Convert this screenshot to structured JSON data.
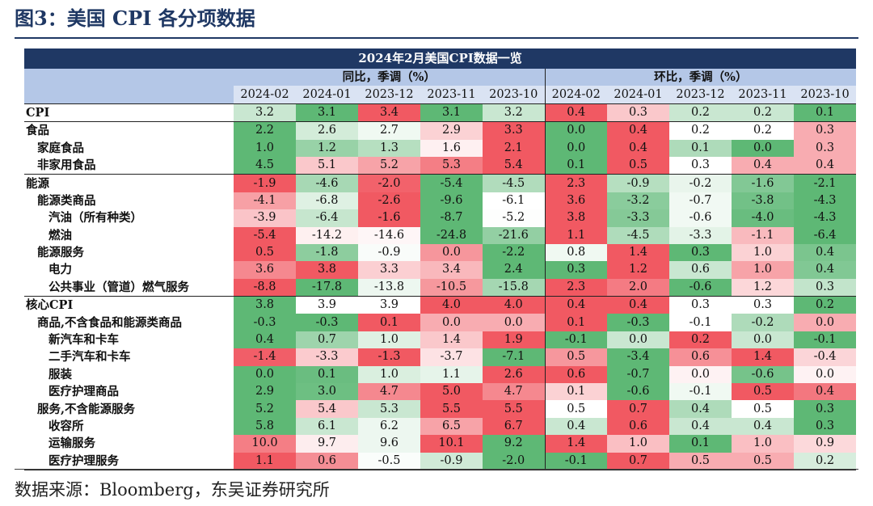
{
  "figure_title": "图3：美国 CPI 各分项数据",
  "source": "数据来源：Bloomberg，东吴证券研究所",
  "colors": {
    "pos_max": "#f0505a",
    "neg_max": "#55b46e",
    "header_dark": "#1f3864",
    "header_mid": "#b4c7e7",
    "header_light": "#dae3f3"
  },
  "chart_data": {
    "type": "table",
    "title": "2024年2月美国CPI数据一览",
    "groups": [
      {
        "name": "同比，季调（%）",
        "columns": [
          "2024-02",
          "2024-01",
          "2023-12",
          "2023-11",
          "2023-10"
        ]
      },
      {
        "name": "环比，季调（%）",
        "columns": [
          "2024-02",
          "2024-01",
          "2023-12",
          "2023-11",
          "2023-10"
        ]
      }
    ],
    "rows": [
      {
        "label": "CPI",
        "indent": 0,
        "section": true,
        "yoy": [
          "3.2",
          "3.1",
          "3.4",
          "3.1",
          "3.2"
        ],
        "mom": [
          "0.4",
          "0.3",
          "0.2",
          "0.2",
          "0.1"
        ]
      },
      {
        "label": "食品",
        "indent": 0,
        "section": true,
        "yoy": [
          "2.2",
          "2.6",
          "2.7",
          "2.9",
          "3.3"
        ],
        "mom": [
          "0.0",
          "0.4",
          "0.2",
          "0.2",
          "0.3"
        ]
      },
      {
        "label": "家庭食品",
        "indent": 1,
        "yoy": [
          "1.0",
          "1.2",
          "1.3",
          "1.6",
          "2.1"
        ],
        "mom": [
          "0.0",
          "0.4",
          "0.1",
          "0.0",
          "0.3"
        ]
      },
      {
        "label": "非家用食品",
        "indent": 1,
        "yoy": [
          "4.5",
          "5.1",
          "5.2",
          "5.3",
          "5.4"
        ],
        "mom": [
          "0.1",
          "0.5",
          "0.3",
          "0.4",
          "0.4"
        ]
      },
      {
        "label": "能源",
        "indent": 0,
        "section": true,
        "yoy": [
          "-1.9",
          "-4.6",
          "-2.0",
          "-5.4",
          "-4.5"
        ],
        "mom": [
          "2.3",
          "-0.9",
          "-0.2",
          "-1.6",
          "-2.1"
        ]
      },
      {
        "label": "能源类商品",
        "indent": 1,
        "yoy": [
          "-4.1",
          "-6.8",
          "-2.6",
          "-9.6",
          "-6.1"
        ],
        "mom": [
          "3.6",
          "-3.2",
          "-0.7",
          "-3.8",
          "-4.3"
        ]
      },
      {
        "label": "汽油（所有种类）",
        "indent": 2,
        "yoy": [
          "-3.9",
          "-6.4",
          "-1.6",
          "-8.7",
          "-5.2"
        ],
        "mom": [
          "3.8",
          "-3.3",
          "-0.6",
          "-4.0",
          "-4.3"
        ]
      },
      {
        "label": "燃油",
        "indent": 2,
        "yoy": [
          "-5.4",
          "-14.2",
          "-14.6",
          "-24.8",
          "-21.6"
        ],
        "mom": [
          "1.1",
          "-4.5",
          "-3.3",
          "-1.1",
          "-6.4"
        ]
      },
      {
        "label": "能源服务",
        "indent": 1,
        "yoy": [
          "0.5",
          "-1.8",
          "-0.9",
          "0.0",
          "-2.2"
        ],
        "mom": [
          "0.8",
          "1.4",
          "0.3",
          "1.0",
          "0.4"
        ]
      },
      {
        "label": "电力",
        "indent": 2,
        "yoy": [
          "3.6",
          "3.8",
          "3.3",
          "3.4",
          "2.4"
        ],
        "mom": [
          "0.3",
          "1.2",
          "0.6",
          "1.0",
          "0.4"
        ]
      },
      {
        "label": "公共事业（管道）燃气服务",
        "indent": 2,
        "yoy": [
          "-8.8",
          "-17.8",
          "-13.8",
          "-10.5",
          "-15.8"
        ],
        "mom": [
          "2.3",
          "2.0",
          "-0.6",
          "1.2",
          "0.3"
        ]
      },
      {
        "label": "核心CPI",
        "indent": 0,
        "section": true,
        "yoy": [
          "3.8",
          "3.9",
          "3.9",
          "4.0",
          "4.0"
        ],
        "mom": [
          "0.4",
          "0.4",
          "0.3",
          "0.3",
          "0.2"
        ]
      },
      {
        "label": "商品,不含食品和能源类商品",
        "indent": 1,
        "yoy": [
          "-0.3",
          "-0.3",
          "0.1",
          "0.0",
          "0.0"
        ],
        "mom": [
          "0.1",
          "-0.3",
          "-0.1",
          "-0.2",
          "0.0"
        ]
      },
      {
        "label": "新汽车和卡车",
        "indent": 2,
        "yoy": [
          "0.4",
          "0.7",
          "1.0",
          "1.4",
          "1.9"
        ],
        "mom": [
          "-0.1",
          "0.0",
          "0.2",
          "0.0",
          "-0.1"
        ]
      },
      {
        "label": "二手汽车和卡车",
        "indent": 2,
        "yoy": [
          "-1.4",
          "-3.3",
          "-1.3",
          "-3.7",
          "-7.1"
        ],
        "mom": [
          "0.5",
          "-3.4",
          "0.6",
          "1.4",
          "-0.4"
        ]
      },
      {
        "label": "服装",
        "indent": 2,
        "yoy": [
          "0.0",
          "0.1",
          "1.0",
          "1.1",
          "2.6"
        ],
        "mom": [
          "0.6",
          "-0.7",
          "0.0",
          "-0.6",
          "0.0"
        ]
      },
      {
        "label": "医疗护理商品",
        "indent": 2,
        "yoy": [
          "2.9",
          "3.0",
          "4.7",
          "5.0",
          "4.7"
        ],
        "mom": [
          "0.1",
          "-0.6",
          "-0.1",
          "0.5",
          "0.4"
        ]
      },
      {
        "label": "服务,不含能源服务",
        "indent": 1,
        "yoy": [
          "5.2",
          "5.4",
          "5.3",
          "5.5",
          "5.5"
        ],
        "mom": [
          "0.5",
          "0.7",
          "0.4",
          "0.5",
          "0.3"
        ]
      },
      {
        "label": "收容所",
        "indent": 2,
        "yoy": [
          "5.8",
          "6.1",
          "6.2",
          "6.5",
          "6.7"
        ],
        "mom": [
          "0.4",
          "0.6",
          "0.4",
          "0.4",
          "0.3"
        ]
      },
      {
        "label": "运输服务",
        "indent": 2,
        "yoy": [
          "10.0",
          "9.7",
          "9.6",
          "10.1",
          "9.2"
        ],
        "mom": [
          "1.4",
          "1.0",
          "0.1",
          "1.0",
          "0.9"
        ]
      },
      {
        "label": "医疗护理服务",
        "indent": 2,
        "yoy": [
          "1.1",
          "0.6",
          "-0.5",
          "-0.9",
          "-2.0"
        ],
        "mom": [
          "-0.1",
          "0.7",
          "0.5",
          "0.5",
          "0.2"
        ]
      }
    ]
  }
}
